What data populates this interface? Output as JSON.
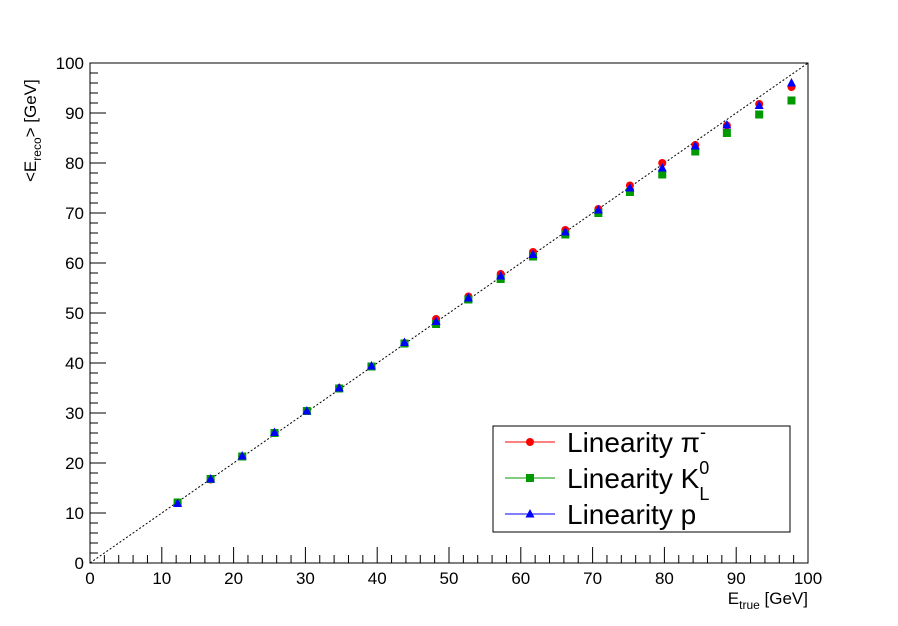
{
  "chart_data": {
    "type": "scatter",
    "xlabel": {
      "main": "E",
      "sub": "true",
      "unit": " [GeV]"
    },
    "ylabel": {
      "prefix": "<E",
      "sub": "reco",
      "suffix": "> [GeV]"
    },
    "xlim": [
      0,
      100
    ],
    "ylim": [
      0,
      100
    ],
    "xticks": [
      "0",
      "10",
      "20",
      "30",
      "40",
      "50",
      "60",
      "70",
      "80",
      "90",
      "100"
    ],
    "yticks": [
      "0",
      "10",
      "20",
      "30",
      "40",
      "50",
      "60",
      "70",
      "80",
      "90",
      "100"
    ],
    "grid": false,
    "reference_line": {
      "style": "dotted diagonal",
      "from": [
        0,
        0
      ],
      "to": [
        100,
        100
      ]
    },
    "legend": {
      "position": "bottom-right",
      "entries": [
        {
          "text": "Linearity π",
          "sup": "-",
          "sub": ""
        },
        {
          "text": "Linearity K",
          "sup": "0",
          "sub": "L"
        },
        {
          "text": "Linearity p",
          "sup": "",
          "sub": ""
        }
      ]
    },
    "series": [
      {
        "color": "#ff0000",
        "marker": "circle",
        "points": [
          [
            12.2,
            12.0
          ],
          [
            16.8,
            16.7
          ],
          [
            21.2,
            21.3
          ],
          [
            25.7,
            26.0
          ],
          [
            30.2,
            30.4
          ],
          [
            34.7,
            35.0
          ],
          [
            39.2,
            39.3
          ],
          [
            43.8,
            44.0
          ],
          [
            48.2,
            48.8
          ],
          [
            52.7,
            53.3
          ],
          [
            57.2,
            57.8
          ],
          [
            61.7,
            62.2
          ],
          [
            66.2,
            66.6
          ],
          [
            70.8,
            70.8
          ],
          [
            75.2,
            75.5
          ],
          [
            79.7,
            80.0
          ],
          [
            84.3,
            83.6
          ],
          [
            88.7,
            87.5
          ],
          [
            93.2,
            91.8
          ],
          [
            97.7,
            95.2
          ]
        ]
      },
      {
        "color": "#009900",
        "marker": "square",
        "points": [
          [
            12.2,
            12.1
          ],
          [
            16.8,
            16.8
          ],
          [
            21.2,
            21.3
          ],
          [
            25.7,
            26.0
          ],
          [
            30.2,
            30.4
          ],
          [
            34.7,
            34.9
          ],
          [
            39.2,
            39.3
          ],
          [
            43.8,
            43.9
          ],
          [
            48.2,
            47.8
          ],
          [
            52.7,
            52.7
          ],
          [
            57.2,
            56.8
          ],
          [
            61.7,
            61.3
          ],
          [
            66.2,
            65.7
          ],
          [
            70.8,
            70.0
          ],
          [
            75.2,
            74.2
          ],
          [
            79.7,
            77.7
          ],
          [
            84.3,
            82.3
          ],
          [
            88.7,
            86.0
          ],
          [
            93.2,
            89.7
          ],
          [
            97.7,
            92.5
          ]
        ]
      },
      {
        "color": "#0000ff",
        "marker": "triangle",
        "points": [
          [
            12.2,
            11.9
          ],
          [
            16.8,
            16.8
          ],
          [
            21.2,
            21.4
          ],
          [
            25.7,
            26.1
          ],
          [
            30.2,
            30.4
          ],
          [
            34.7,
            35.0
          ],
          [
            39.2,
            39.4
          ],
          [
            43.8,
            44.1
          ],
          [
            48.2,
            48.3
          ],
          [
            52.7,
            53.0
          ],
          [
            57.2,
            57.4
          ],
          [
            61.7,
            61.7
          ],
          [
            66.2,
            66.2
          ],
          [
            70.8,
            70.6
          ],
          [
            75.2,
            75.0
          ],
          [
            79.7,
            79.0
          ],
          [
            84.3,
            83.4
          ],
          [
            88.7,
            87.6
          ],
          [
            93.2,
            91.5
          ],
          [
            97.7,
            96.0
          ]
        ]
      }
    ]
  }
}
